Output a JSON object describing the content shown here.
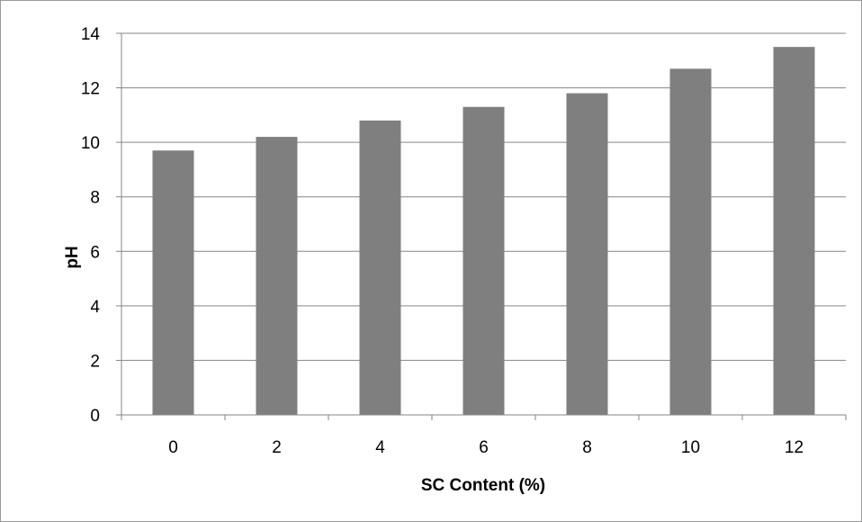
{
  "chart_data": {
    "type": "bar",
    "categories": [
      "0",
      "2",
      "4",
      "6",
      "8",
      "10",
      "12"
    ],
    "values": [
      9.7,
      10.2,
      10.8,
      11.3,
      11.8,
      12.7,
      13.5
    ],
    "series": [
      {
        "name": "",
        "values": [
          9.7,
          10.2,
          10.8,
          11.3,
          11.8,
          12.7,
          13.5
        ]
      }
    ],
    "title": "",
    "xlabel": "SC Content (%)",
    "ylabel": "pH",
    "ylim": [
      0,
      14
    ],
    "yticks": [
      "0",
      "2",
      "4",
      "6",
      "8",
      "10",
      "12",
      "14"
    ],
    "grid": true,
    "bar_color": "#7f7f7f",
    "grid_color": "#868686"
  }
}
